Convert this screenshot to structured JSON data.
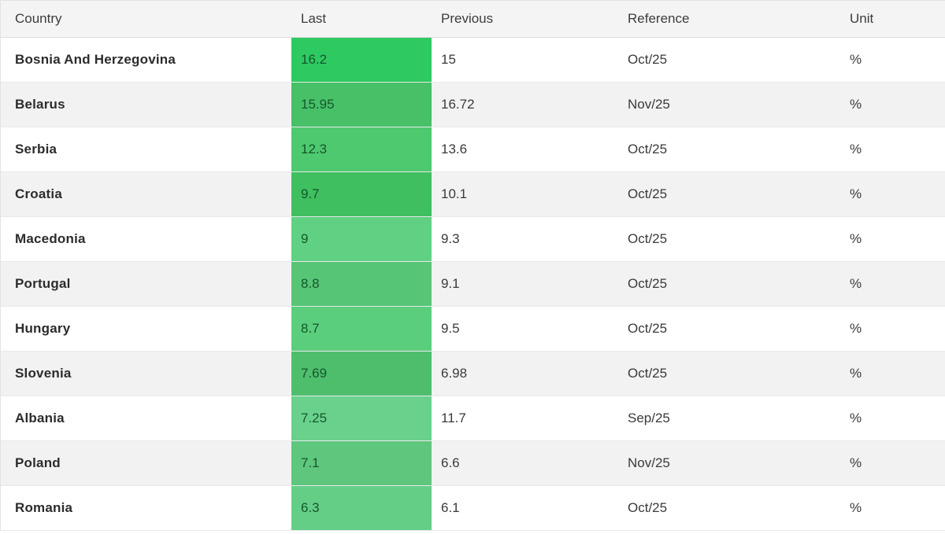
{
  "table": {
    "columns": [
      {
        "key": "country",
        "label": "Country"
      },
      {
        "key": "last",
        "label": "Last"
      },
      {
        "key": "previous",
        "label": "Previous"
      },
      {
        "key": "reference",
        "label": "Reference"
      },
      {
        "key": "unit",
        "label": "Unit"
      }
    ],
    "rows": [
      {
        "country": "Bosnia And Herzegovina",
        "last": "16.2",
        "previous": "15",
        "reference": "Oct/25",
        "unit": "%",
        "last_bg": "#2fc961"
      },
      {
        "country": "Belarus",
        "last": "15.95",
        "previous": "16.72",
        "reference": "Nov/25",
        "unit": "%",
        "last_bg": "#47c068"
      },
      {
        "country": "Serbia",
        "last": "12.3",
        "previous": "13.6",
        "reference": "Oct/25",
        "unit": "%",
        "last_bg": "#4ec96f"
      },
      {
        "country": "Croatia",
        "last": "9.7",
        "previous": "10.1",
        "reference": "Oct/25",
        "unit": "%",
        "last_bg": "#3fbf5f"
      },
      {
        "country": "Macedonia",
        "last": "9",
        "previous": "9.3",
        "reference": "Oct/25",
        "unit": "%",
        "last_bg": "#60d183"
      },
      {
        "country": "Portugal",
        "last": "8.8",
        "previous": "9.1",
        "reference": "Oct/25",
        "unit": "%",
        "last_bg": "#57c576"
      },
      {
        "country": "Hungary",
        "last": "8.7",
        "previous": "9.5",
        "reference": "Oct/25",
        "unit": "%",
        "last_bg": "#5bce7d"
      },
      {
        "country": "Slovenia",
        "last": "7.69",
        "previous": "6.98",
        "reference": "Oct/25",
        "unit": "%",
        "last_bg": "#4ebe6c"
      },
      {
        "country": "Albania",
        "last": "7.25",
        "previous": "11.7",
        "reference": "Sep/25",
        "unit": "%",
        "last_bg": "#6ad18d"
      },
      {
        "country": "Poland",
        "last": "7.1",
        "previous": "6.6",
        "reference": "Nov/25",
        "unit": "%",
        "last_bg": "#5fc67e"
      },
      {
        "country": "Romania",
        "last": "6.3",
        "previous": "6.1",
        "reference": "Oct/25",
        "unit": "%",
        "last_bg": "#64ce87"
      }
    ],
    "value_text_color": "#14582b"
  },
  "chart_data": {
    "type": "table",
    "title": "",
    "columns": [
      "Country",
      "Last",
      "Previous",
      "Reference",
      "Unit"
    ],
    "rows": [
      [
        "Bosnia And Herzegovina",
        16.2,
        15,
        "Oct/25",
        "%"
      ],
      [
        "Belarus",
        15.95,
        16.72,
        "Nov/25",
        "%"
      ],
      [
        "Serbia",
        12.3,
        13.6,
        "Oct/25",
        "%"
      ],
      [
        "Croatia",
        9.7,
        10.1,
        "Oct/25",
        "%"
      ],
      [
        "Macedonia",
        9,
        9.3,
        "Oct/25",
        "%"
      ],
      [
        "Portugal",
        8.8,
        9.1,
        "Oct/25",
        "%"
      ],
      [
        "Hungary",
        8.7,
        9.5,
        "Oct/25",
        "%"
      ],
      [
        "Slovenia",
        7.69,
        6.98,
        "Oct/25",
        "%"
      ],
      [
        "Albania",
        7.25,
        11.7,
        "Sep/25",
        "%"
      ],
      [
        "Poland",
        7.1,
        6.6,
        "Nov/25",
        "%"
      ],
      [
        "Romania",
        6.3,
        6.1,
        "Oct/25",
        "%"
      ]
    ]
  }
}
